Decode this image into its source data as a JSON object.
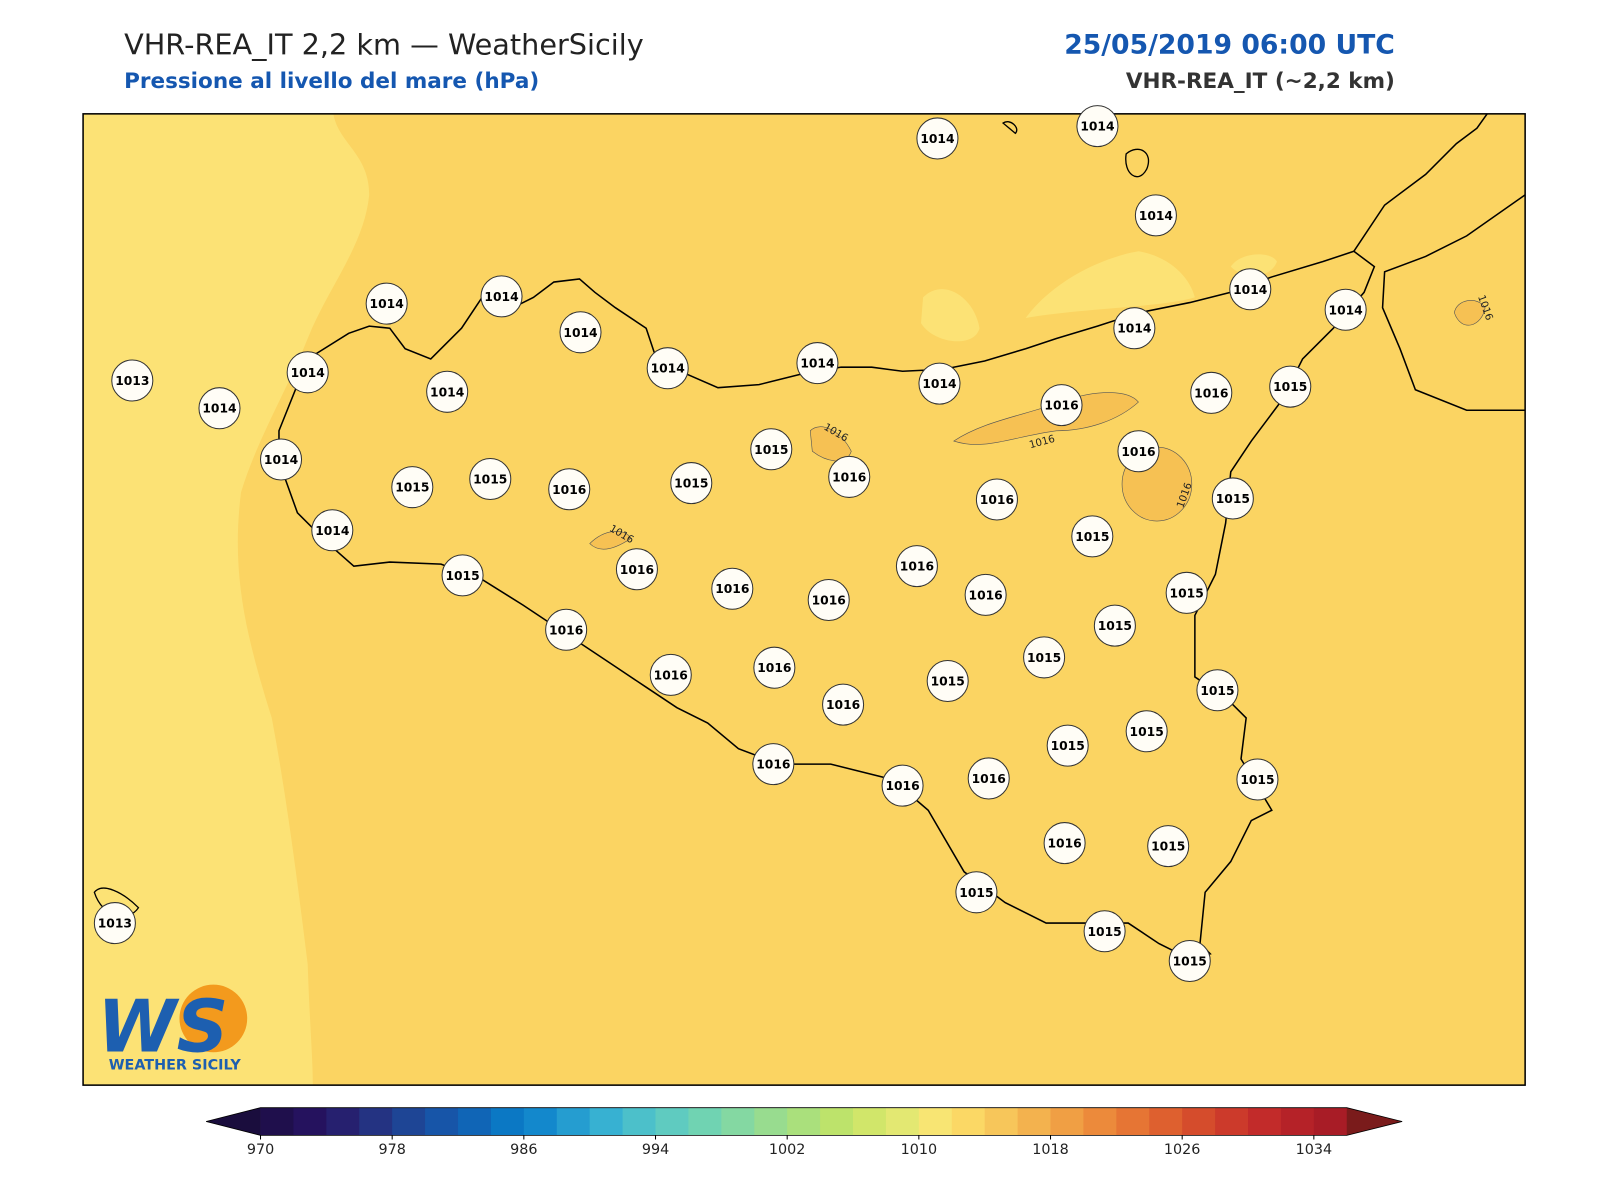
{
  "header": {
    "title": "VHR-REA_IT 2,2 km — WeatherSicily",
    "subtitle": "Pressione al livello del mare (hPa)",
    "date": "25/05/2019 06:00 UTC",
    "model": "VHR-REA_IT (~2,2 km)"
  },
  "map": {
    "stations": [
      1014,
      1014,
      1014,
      1014,
      1014,
      1014,
      1014,
      1014,
      1014,
      1014,
      1014,
      1013,
      1014,
      1014,
      1014,
      1014,
      1016,
      1016,
      1015,
      1014,
      1015,
      1015,
      1016,
      1015,
      1015,
      1016,
      1016,
      1016,
      1015,
      1014,
      1015,
      1015,
      1016,
      1016,
      1016,
      1016,
      1016,
      1015,
      1016,
      1015,
      1015,
      1016,
      1016,
      1015,
      1016,
      1015,
      1015,
      1015,
      1016,
      1016,
      1016,
      1015,
      1016,
      1015,
      1015,
      1015,
      1015,
      1013
    ],
    "contour_labels": [
      1016,
      1016,
      1016,
      1016,
      1016
    ]
  },
  "logo": {
    "mark": "WS",
    "name": "WEATHER SICILY"
  },
  "colorbar": {
    "clim": [
      970,
      1036
    ],
    "ticks": [
      970,
      978,
      986,
      994,
      1002,
      1010,
      1018,
      1026,
      1034
    ],
    "colors": [
      "#1f0f4c",
      "#25125e",
      "#26206f",
      "#243382",
      "#1e4595",
      "#1755a8",
      "#1065b6",
      "#0b78c4",
      "#1388cc",
      "#259dd0",
      "#37b1d2",
      "#4cc0ca",
      "#5fcbc0",
      "#70d3b2",
      "#84d8a2",
      "#98dc8f",
      "#aae07c",
      "#bde36b",
      "#d1e66a",
      "#e3e872",
      "#f8e573",
      "#fbd865",
      "#f7c65a",
      "#f3b24e",
      "#f09f44",
      "#ec8a3b",
      "#e67534",
      "#de602f",
      "#d54c2c",
      "#cc3a2b",
      "#c22b2a",
      "#b52228",
      "#a81c26"
    ],
    "under": "#1a0d3d",
    "over": "#7a1b1b"
  }
}
